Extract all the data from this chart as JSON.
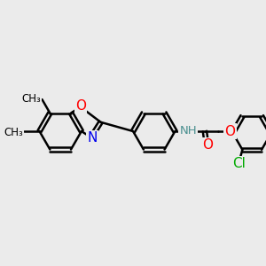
{
  "background_color": "#ebebeb",
  "bond_color": "#000000",
  "bond_width": 1.8,
  "colors": {
    "C": "#000000",
    "N": "#0000ee",
    "O": "#ff0000",
    "Cl": "#00aa00",
    "NH": "#4a9090"
  }
}
